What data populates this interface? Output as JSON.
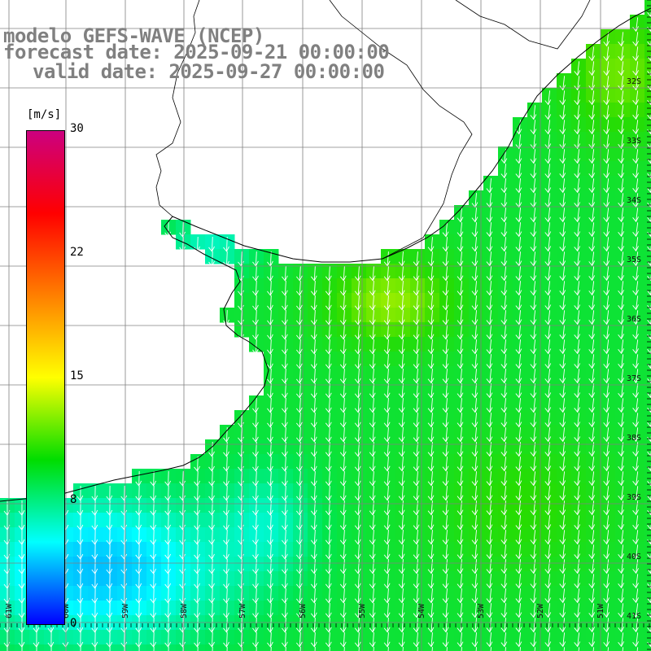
{
  "title": {
    "line1": "modelo GEFS-WAVE (NCEP)",
    "line2": "forecast date: 2025-09-21 00:00:00",
    "line3": "valid date: 2025-09-27 00:00:00",
    "color": "#808080"
  },
  "legend": {
    "unit": "[m/s]",
    "ticks": [
      "30",
      "22",
      "15",
      "8",
      "0"
    ],
    "colors": [
      "#0000ff",
      "#00ffff",
      "#00dd00",
      "#ffff00",
      "#ff7f00",
      "#ff0000",
      "#cc0080"
    ]
  },
  "map": {
    "lat_labels": [
      "32S",
      "33S",
      "34S",
      "35S",
      "36S",
      "37S",
      "38S",
      "39S",
      "40S",
      "41S"
    ],
    "lon_labels": [
      "61W",
      "60W",
      "59W",
      "58W",
      "57W",
      "56W",
      "55W",
      "54W",
      "53W",
      "52W",
      "51W"
    ],
    "land_color": "#ffffff",
    "grid_color": "#808080",
    "arrow_color": "#ffffff"
  }
}
